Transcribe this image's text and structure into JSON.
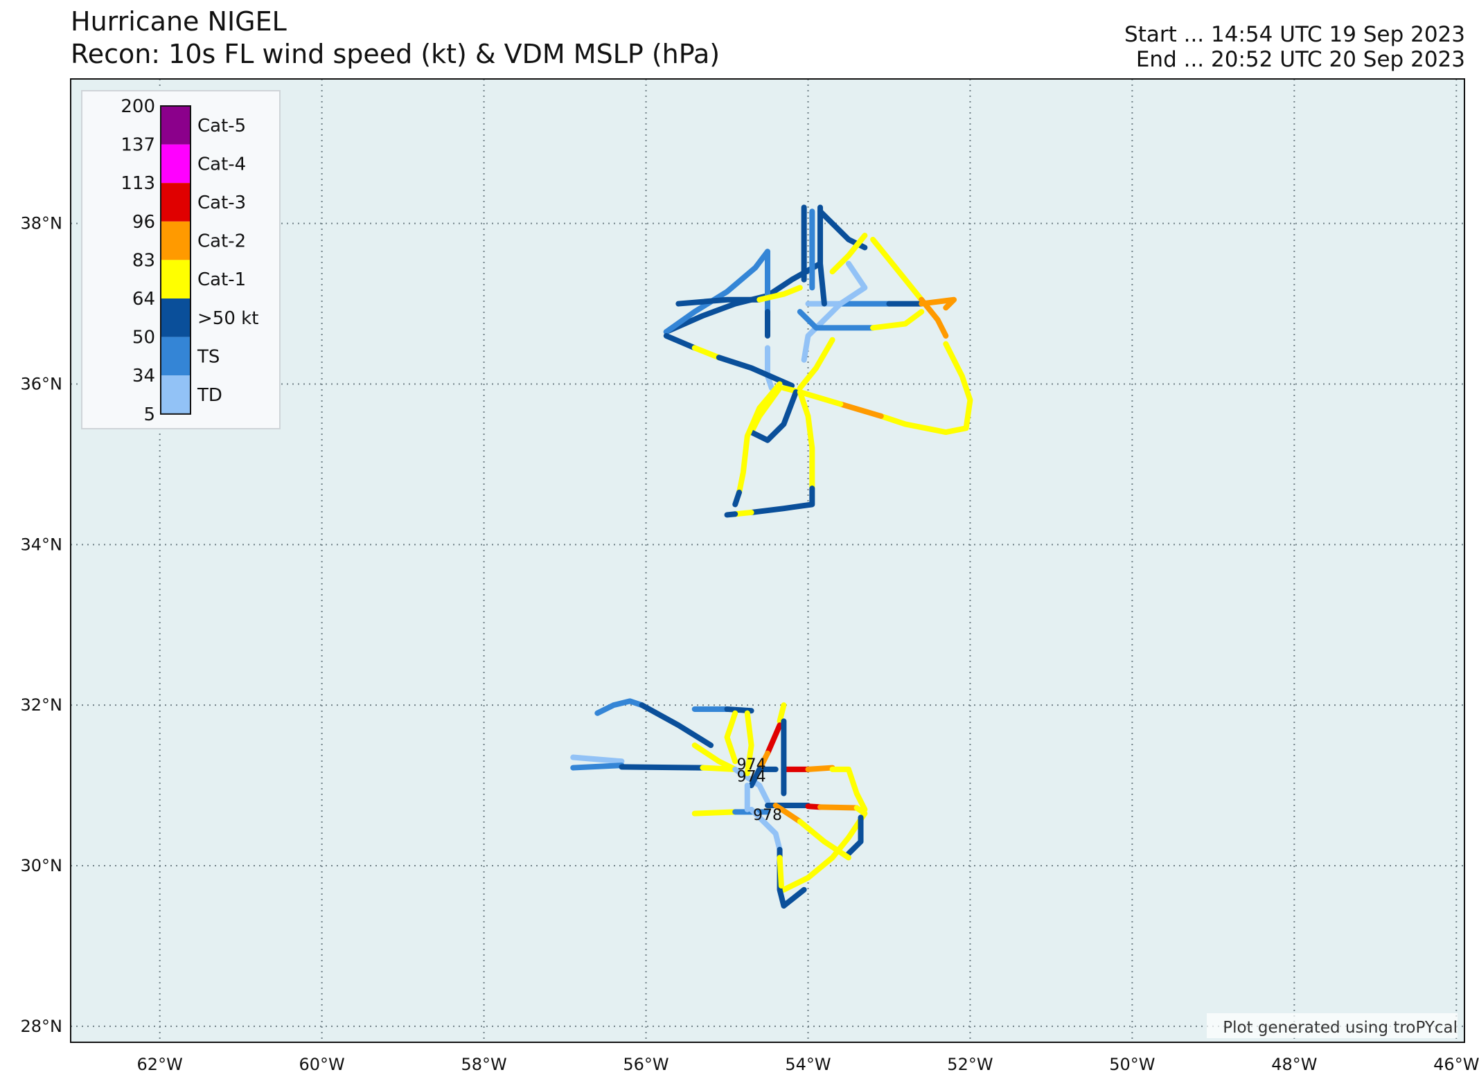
{
  "title": {
    "line1": "Hurricane NIGEL",
    "line2": "Recon: 10s FL wind speed (kt) & VDM MSLP (hPa)"
  },
  "times": {
    "start": "Start ... 14:54 UTC 19 Sep 2023",
    "end": "End ... 20:52 UTC 20 Sep 2023"
  },
  "map": {
    "extent": {
      "lon": [
        -63.1,
        -45.9
      ],
      "lat": [
        27.8,
        39.8
      ]
    },
    "lon_ticks": [
      {
        "value": -62,
        "label": "62°W"
      },
      {
        "value": -60,
        "label": "60°W"
      },
      {
        "value": -58,
        "label": "58°W"
      },
      {
        "value": -56,
        "label": "56°W"
      },
      {
        "value": -54,
        "label": "54°W"
      },
      {
        "value": -52,
        "label": "52°W"
      },
      {
        "value": -50,
        "label": "50°W"
      },
      {
        "value": -48,
        "label": "48°W"
      },
      {
        "value": -46,
        "label": "46°W"
      }
    ],
    "lat_ticks": [
      {
        "value": 28,
        "label": "28°N"
      },
      {
        "value": 30,
        "label": "30°N"
      },
      {
        "value": 32,
        "label": "32°N"
      },
      {
        "value": 34,
        "label": "34°N"
      },
      {
        "value": 36,
        "label": "36°N"
      },
      {
        "value": 38,
        "label": "38°N"
      }
    ],
    "ocean_color": "#e4f0f2",
    "gridlines": true,
    "credit": "Plot generated using troPYcal"
  },
  "legend": {
    "placement": "upper-left",
    "thresholds": [
      "200",
      "137",
      "113",
      "96",
      "83",
      "64",
      "50",
      "34",
      "5"
    ],
    "categories": [
      {
        "label": "Cat-5",
        "color": "#8b008b"
      },
      {
        "label": "Cat-4",
        "color": "#ff00ff"
      },
      {
        "label": "Cat-3",
        "color": "#e00000"
      },
      {
        "label": "Cat-2",
        "color": "#ff9a00"
      },
      {
        "label": "Cat-1",
        "color": "#ffff00"
      },
      {
        "label": ">50 kt",
        "color": "#0a4f9a"
      },
      {
        "label": "TS",
        "color": "#3485d6"
      },
      {
        "label": "TD",
        "color": "#92c2f6"
      }
    ]
  },
  "chart_data": {
    "type": "scatter",
    "xlabel": "",
    "ylabel": "",
    "x_range": [
      -63.1,
      -45.9
    ],
    "y_range": [
      27.8,
      39.8
    ],
    "mslp_labels": [
      {
        "lon": -54.7,
        "lat": 31.2,
        "text": "974"
      },
      {
        "lon": -54.7,
        "lat": 31.05,
        "text": "974"
      },
      {
        "lon": -54.5,
        "lat": 30.57,
        "text": "978"
      }
    ],
    "track_segments": [
      {
        "cat": "TS",
        "pts": [
          [
            -56.6,
            31.9
          ],
          [
            -56.4,
            32.0
          ],
          [
            -56.2,
            32.05
          ],
          [
            -56.05,
            32.0
          ]
        ]
      },
      {
        "cat": "H50",
        "pts": [
          [
            -56.05,
            32.0
          ],
          [
            -55.6,
            31.75
          ],
          [
            -55.2,
            31.5
          ]
        ]
      },
      {
        "cat": "C1",
        "pts": [
          [
            -55.4,
            31.5
          ],
          [
            -55.1,
            31.3
          ],
          [
            -54.9,
            31.2
          ]
        ]
      },
      {
        "cat": "TD",
        "pts": [
          [
            -56.9,
            31.35
          ],
          [
            -56.3,
            31.3
          ]
        ]
      },
      {
        "cat": "TS",
        "pts": [
          [
            -56.9,
            31.22
          ],
          [
            -56.3,
            31.25
          ]
        ]
      },
      {
        "cat": "H50",
        "pts": [
          [
            -56.3,
            31.23
          ],
          [
            -55.3,
            31.22
          ]
        ]
      },
      {
        "cat": "C1",
        "pts": [
          [
            -55.3,
            31.22
          ],
          [
            -54.9,
            31.2
          ]
        ]
      },
      {
        "cat": "TD",
        "pts": [
          [
            -54.9,
            31.2
          ],
          [
            -54.6,
            31.0
          ],
          [
            -54.5,
            30.8
          ]
        ]
      },
      {
        "cat": "H50",
        "pts": [
          [
            -54.6,
            31.2
          ],
          [
            -54.4,
            31.2
          ]
        ]
      },
      {
        "cat": "C3",
        "pts": [
          [
            -54.3,
            31.2
          ],
          [
            -54.0,
            31.2
          ]
        ]
      },
      {
        "cat": "C2",
        "pts": [
          [
            -54.0,
            31.2
          ],
          [
            -53.7,
            31.22
          ]
        ]
      },
      {
        "cat": "C1",
        "pts": [
          [
            -53.7,
            31.2
          ],
          [
            -53.5,
            31.2
          ],
          [
            -53.4,
            30.9
          ],
          [
            -53.3,
            30.7
          ]
        ]
      },
      {
        "cat": "TS",
        "pts": [
          [
            -55.4,
            31.95
          ],
          [
            -55.0,
            31.95
          ]
        ]
      },
      {
        "cat": "H50",
        "pts": [
          [
            -55.0,
            31.95
          ],
          [
            -54.7,
            31.93
          ]
        ]
      },
      {
        "cat": "C1",
        "pts": [
          [
            -54.9,
            31.9
          ],
          [
            -55.0,
            31.6
          ],
          [
            -54.9,
            31.3
          ]
        ]
      },
      {
        "cat": "C1",
        "pts": [
          [
            -54.75,
            31.9
          ],
          [
            -54.7,
            31.5
          ],
          [
            -54.75,
            31.15
          ]
        ]
      },
      {
        "cat": "C1",
        "pts": [
          [
            -54.3,
            32.0
          ],
          [
            -54.35,
            31.8
          ]
        ]
      },
      {
        "cat": "C3",
        "pts": [
          [
            -54.35,
            31.75
          ],
          [
            -54.5,
            31.4
          ]
        ]
      },
      {
        "cat": "C2",
        "pts": [
          [
            -54.5,
            31.4
          ],
          [
            -54.6,
            31.2
          ]
        ]
      },
      {
        "cat": "H50",
        "pts": [
          [
            -54.6,
            31.2
          ],
          [
            -54.7,
            31.0
          ]
        ]
      },
      {
        "cat": "C1",
        "pts": [
          [
            -55.4,
            30.65
          ],
          [
            -54.9,
            30.67
          ]
        ]
      },
      {
        "cat": "TS",
        "pts": [
          [
            -54.9,
            30.67
          ],
          [
            -54.5,
            30.67
          ]
        ]
      },
      {
        "cat": "H50",
        "pts": [
          [
            -54.5,
            30.75
          ],
          [
            -54.0,
            30.75
          ]
        ]
      },
      {
        "cat": "C3",
        "pts": [
          [
            -54.0,
            30.74
          ],
          [
            -53.85,
            30.73
          ]
        ]
      },
      {
        "cat": "C2",
        "pts": [
          [
            -53.85,
            30.73
          ],
          [
            -53.4,
            30.72
          ]
        ]
      },
      {
        "cat": "C1",
        "pts": [
          [
            -53.4,
            30.72
          ],
          [
            -53.3,
            30.65
          ],
          [
            -53.5,
            30.35
          ],
          [
            -53.7,
            30.1
          ],
          [
            -54.0,
            29.85
          ],
          [
            -54.3,
            29.7
          ]
        ]
      },
      {
        "cat": "H50",
        "pts": [
          [
            -53.35,
            30.6
          ],
          [
            -53.35,
            30.3
          ],
          [
            -53.5,
            30.15
          ]
        ]
      },
      {
        "cat": "C2",
        "pts": [
          [
            -54.4,
            30.75
          ],
          [
            -54.1,
            30.55
          ]
        ]
      },
      {
        "cat": "C1",
        "pts": [
          [
            -54.1,
            30.55
          ],
          [
            -53.8,
            30.3
          ],
          [
            -53.5,
            30.1
          ]
        ]
      },
      {
        "cat": "TD",
        "pts": [
          [
            -54.7,
            30.7
          ],
          [
            -54.4,
            30.4
          ],
          [
            -54.35,
            30.2
          ]
        ]
      },
      {
        "cat": "H50",
        "pts": [
          [
            -54.35,
            30.2
          ],
          [
            -54.35,
            29.7
          ],
          [
            -54.3,
            29.5
          ],
          [
            -54.05,
            29.7
          ]
        ]
      },
      {
        "cat": "C1",
        "pts": [
          [
            -54.35,
            30.1
          ],
          [
            -54.33,
            29.75
          ]
        ]
      },
      {
        "cat": "TD",
        "pts": [
          [
            -54.75,
            31.0
          ],
          [
            -54.75,
            30.7
          ]
        ]
      },
      {
        "cat": "H50",
        "pts": [
          [
            -54.3,
            31.8
          ],
          [
            -54.3,
            31.3
          ],
          [
            -54.3,
            30.9
          ]
        ]
      },
      {
        "cat": "H50",
        "pts": [
          [
            -55.75,
            36.65
          ],
          [
            -55.3,
            36.85
          ],
          [
            -54.9,
            37.0
          ],
          [
            -54.5,
            37.1
          ],
          [
            -54.2,
            37.3
          ],
          [
            -53.85,
            37.5
          ]
        ]
      },
      {
        "cat": "TS",
        "pts": [
          [
            -55.75,
            36.65
          ],
          [
            -55.4,
            36.9
          ],
          [
            -55.0,
            37.15
          ],
          [
            -54.65,
            37.45
          ],
          [
            -54.5,
            37.65
          ]
        ]
      },
      {
        "cat": "TS",
        "pts": [
          [
            -54.5,
            37.65
          ],
          [
            -54.5,
            36.9
          ]
        ]
      },
      {
        "cat": "H50",
        "pts": [
          [
            -54.5,
            36.9
          ],
          [
            -54.5,
            36.6
          ]
        ]
      },
      {
        "cat": "TD",
        "pts": [
          [
            -54.5,
            36.45
          ],
          [
            -54.5,
            36.1
          ],
          [
            -54.45,
            35.95
          ]
        ]
      },
      {
        "cat": "H50",
        "pts": [
          [
            -55.6,
            37.0
          ],
          [
            -55.0,
            37.05
          ],
          [
            -54.6,
            37.05
          ]
        ]
      },
      {
        "cat": "C1",
        "pts": [
          [
            -54.6,
            37.05
          ],
          [
            -54.3,
            37.12
          ],
          [
            -54.1,
            37.2
          ]
        ]
      },
      {
        "cat": "TD",
        "pts": [
          [
            -54.0,
            37.0
          ],
          [
            -53.6,
            37.0
          ]
        ]
      },
      {
        "cat": "TS",
        "pts": [
          [
            -53.6,
            37.0
          ],
          [
            -53.0,
            37.0
          ]
        ]
      },
      {
        "cat": "H50",
        "pts": [
          [
            -53.0,
            37.0
          ],
          [
            -52.6,
            37.0
          ]
        ]
      },
      {
        "cat": "C2",
        "pts": [
          [
            -52.6,
            37.0
          ],
          [
            -52.2,
            37.05
          ],
          [
            -52.3,
            36.95
          ]
        ]
      },
      {
        "cat": "H50",
        "pts": [
          [
            -55.75,
            36.6
          ],
          [
            -55.4,
            36.45
          ]
        ]
      },
      {
        "cat": "C1",
        "pts": [
          [
            -55.4,
            36.45
          ],
          [
            -55.1,
            36.33
          ]
        ]
      },
      {
        "cat": "H50",
        "pts": [
          [
            -55.1,
            36.33
          ],
          [
            -54.7,
            36.2
          ],
          [
            -54.2,
            35.98
          ]
        ]
      },
      {
        "cat": "H50",
        "pts": [
          [
            -54.05,
            38.2
          ],
          [
            -54.05,
            37.3
          ]
        ]
      },
      {
        "cat": "H50",
        "pts": [
          [
            -53.85,
            38.2
          ],
          [
            -53.85,
            37.5
          ],
          [
            -53.8,
            37.0
          ]
        ]
      },
      {
        "cat": "TS",
        "pts": [
          [
            -53.95,
            38.15
          ],
          [
            -53.95,
            37.2
          ]
        ]
      },
      {
        "cat": "H50",
        "pts": [
          [
            -53.85,
            38.15
          ],
          [
            -53.5,
            37.8
          ],
          [
            -53.3,
            37.7
          ]
        ]
      },
      {
        "cat": "C1",
        "pts": [
          [
            -53.3,
            37.85
          ],
          [
            -53.5,
            37.6
          ],
          [
            -53.7,
            37.4
          ]
        ]
      },
      {
        "cat": "TD",
        "pts": [
          [
            -53.5,
            37.5
          ],
          [
            -53.3,
            37.2
          ],
          [
            -53.6,
            37.0
          ],
          [
            -53.8,
            36.8
          ],
          [
            -54.0,
            36.6
          ],
          [
            -54.05,
            36.3
          ]
        ]
      },
      {
        "cat": "TS",
        "pts": [
          [
            -54.1,
            36.9
          ],
          [
            -53.9,
            36.7
          ],
          [
            -53.5,
            36.7
          ],
          [
            -53.2,
            36.7
          ]
        ]
      },
      {
        "cat": "C1",
        "pts": [
          [
            -53.2,
            36.7
          ],
          [
            -52.8,
            36.75
          ],
          [
            -52.6,
            36.9
          ]
        ]
      },
      {
        "cat": "C1",
        "pts": [
          [
            -53.2,
            37.8
          ],
          [
            -52.8,
            37.3
          ],
          [
            -52.6,
            37.05
          ]
        ]
      },
      {
        "cat": "C2",
        "pts": [
          [
            -52.6,
            37.05
          ],
          [
            -52.4,
            36.8
          ],
          [
            -52.3,
            36.6
          ]
        ]
      },
      {
        "cat": "C1",
        "pts": [
          [
            -52.3,
            36.5
          ],
          [
            -52.1,
            36.1
          ],
          [
            -52.0,
            35.8
          ],
          [
            -52.05,
            35.45
          ],
          [
            -52.3,
            35.4
          ]
        ]
      },
      {
        "cat": "C1",
        "pts": [
          [
            -52.3,
            35.4
          ],
          [
            -52.8,
            35.5
          ],
          [
            -53.1,
            35.6
          ]
        ]
      },
      {
        "cat": "C2",
        "pts": [
          [
            -53.1,
            35.6
          ],
          [
            -53.6,
            35.75
          ]
        ]
      },
      {
        "cat": "C1",
        "pts": [
          [
            -53.6,
            35.75
          ],
          [
            -54.1,
            35.9
          ],
          [
            -54.3,
            35.95
          ]
        ]
      },
      {
        "cat": "C1",
        "pts": [
          [
            -53.7,
            36.55
          ],
          [
            -53.9,
            36.2
          ],
          [
            -54.1,
            35.95
          ]
        ]
      },
      {
        "cat": "C1",
        "pts": [
          [
            -54.35,
            35.95
          ],
          [
            -54.6,
            35.6
          ],
          [
            -54.7,
            35.4
          ]
        ]
      },
      {
        "cat": "H50",
        "pts": [
          [
            -54.7,
            35.4
          ],
          [
            -54.5,
            35.3
          ],
          [
            -54.3,
            35.5
          ],
          [
            -54.15,
            35.9
          ]
        ]
      },
      {
        "cat": "C1",
        "pts": [
          [
            -54.1,
            35.9
          ],
          [
            -54.0,
            35.6
          ],
          [
            -53.95,
            35.2
          ],
          [
            -53.95,
            34.7
          ]
        ]
      },
      {
        "cat": "H50",
        "pts": [
          [
            -53.95,
            34.7
          ],
          [
            -53.95,
            34.5
          ],
          [
            -54.3,
            34.45
          ],
          [
            -54.7,
            34.4
          ]
        ]
      },
      {
        "cat": "C1",
        "pts": [
          [
            -54.7,
            34.4
          ],
          [
            -54.9,
            34.38
          ]
        ]
      },
      {
        "cat": "H50",
        "pts": [
          [
            -54.9,
            34.38
          ],
          [
            -55.0,
            34.37
          ]
        ]
      },
      {
        "cat": "C1",
        "pts": [
          [
            -54.35,
            36.0
          ],
          [
            -54.6,
            35.7
          ],
          [
            -54.75,
            35.35
          ],
          [
            -54.8,
            34.9
          ],
          [
            -54.85,
            34.65
          ]
        ]
      },
      {
        "cat": "H50",
        "pts": [
          [
            -54.85,
            34.65
          ],
          [
            -54.9,
            34.5
          ]
        ]
      }
    ]
  }
}
